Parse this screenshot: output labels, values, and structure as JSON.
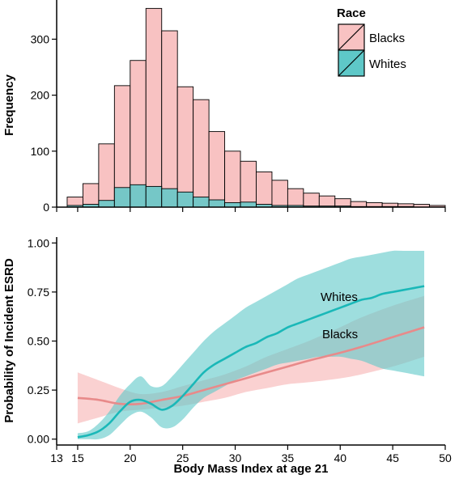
{
  "chart_data": [
    {
      "type": "bar",
      "subtype": "overlaid-histogram",
      "ylabel": "Frequency",
      "xlim": [
        13,
        50
      ],
      "ylim": [
        0,
        370
      ],
      "yticks": [
        0,
        100,
        200,
        300
      ],
      "bin_width": 1.5,
      "bin_starts": [
        14,
        15.5,
        17,
        18.5,
        20,
        21.5,
        23,
        24.5,
        26,
        27.5,
        29,
        30.5,
        32,
        33.5,
        35,
        36.5,
        38,
        39.5,
        41,
        42.5,
        44,
        45.5,
        47,
        48.5
      ],
      "series": [
        {
          "name": "Blacks",
          "color": "#f8c2c2",
          "values": [
            18,
            42,
            113,
            217,
            262,
            355,
            315,
            215,
            192,
            135,
            100,
            82,
            63,
            48,
            33,
            25,
            20,
            15,
            10,
            8,
            7,
            6,
            5,
            3
          ]
        },
        {
          "name": "Whites",
          "color": "#5ec8c8",
          "values": [
            3,
            5,
            12,
            35,
            40,
            37,
            33,
            27,
            18,
            13,
            8,
            9,
            5,
            3,
            3,
            2,
            2,
            2,
            1,
            1,
            1,
            1,
            0,
            0
          ]
        }
      ],
      "legend": {
        "title": "Race",
        "position": "top-right",
        "entries": [
          "Blacks",
          "Whites"
        ]
      }
    },
    {
      "type": "line",
      "subtype": "smoothed-probability-with-confidence-band",
      "xlabel": "Body Mass Index at age 21",
      "ylabel": "Probability of Incident ESRD",
      "xlim": [
        13,
        50
      ],
      "ylim": [
        -0.03,
        1.03
      ],
      "xticks": [
        13,
        15,
        20,
        25,
        30,
        35,
        40,
        45,
        50
      ],
      "yticks": [
        "0.00",
        "0.25",
        "0.50",
        "0.75",
        "1.00"
      ],
      "series": [
        {
          "name": "Blacks",
          "color": "#e88a8a",
          "band_color": "#f8c2c2",
          "x": [
            15,
            17,
            19,
            21,
            23,
            25,
            27,
            29,
            31,
            33,
            35,
            37,
            40,
            42,
            45,
            48
          ],
          "y": [
            0.21,
            0.2,
            0.18,
            0.18,
            0.2,
            0.22,
            0.25,
            0.28,
            0.31,
            0.34,
            0.37,
            0.4,
            0.44,
            0.47,
            0.52,
            0.57
          ],
          "lower": [
            0.08,
            0.11,
            0.14,
            0.15,
            0.16,
            0.17,
            0.19,
            0.21,
            0.24,
            0.26,
            0.28,
            0.29,
            0.31,
            0.33,
            0.37,
            0.42
          ],
          "upper": [
            0.34,
            0.3,
            0.26,
            0.23,
            0.24,
            0.27,
            0.3,
            0.33,
            0.37,
            0.42,
            0.46,
            0.5,
            0.57,
            0.62,
            0.68,
            0.73
          ]
        },
        {
          "name": "Whites",
          "color": "#1ab8b8",
          "band_color": "#5ec8c8",
          "x": [
            15,
            16,
            17,
            18,
            19,
            20,
            21,
            22,
            23,
            24,
            25,
            26,
            27,
            28,
            29,
            30,
            31,
            32,
            33,
            34,
            35,
            36,
            37,
            38,
            39,
            40,
            41,
            42,
            43,
            44,
            45,
            46,
            47,
            48
          ],
          "y": [
            0.01,
            0.02,
            0.04,
            0.08,
            0.14,
            0.19,
            0.2,
            0.18,
            0.15,
            0.17,
            0.22,
            0.28,
            0.34,
            0.38,
            0.41,
            0.44,
            0.47,
            0.49,
            0.52,
            0.54,
            0.57,
            0.59,
            0.61,
            0.63,
            0.65,
            0.67,
            0.69,
            0.71,
            0.72,
            0.74,
            0.75,
            0.76,
            0.77,
            0.78
          ],
          "lower": [
            0.0,
            0.0,
            0.0,
            0.02,
            0.07,
            0.12,
            0.14,
            0.11,
            0.06,
            0.06,
            0.1,
            0.16,
            0.21,
            0.24,
            0.27,
            0.3,
            0.32,
            0.34,
            0.36,
            0.38,
            0.39,
            0.4,
            0.41,
            0.42,
            0.42,
            0.42,
            0.41,
            0.4,
            0.38,
            0.36,
            0.35,
            0.34,
            0.33,
            0.32
          ],
          "upper": [
            0.03,
            0.04,
            0.08,
            0.14,
            0.22,
            0.28,
            0.32,
            0.27,
            0.27,
            0.32,
            0.38,
            0.44,
            0.5,
            0.55,
            0.59,
            0.63,
            0.67,
            0.7,
            0.73,
            0.76,
            0.79,
            0.82,
            0.84,
            0.86,
            0.88,
            0.9,
            0.92,
            0.93,
            0.94,
            0.95,
            0.96,
            0.96,
            0.96,
            0.96
          ]
        }
      ],
      "annotations": [
        "Whites",
        "Blacks"
      ]
    }
  ]
}
